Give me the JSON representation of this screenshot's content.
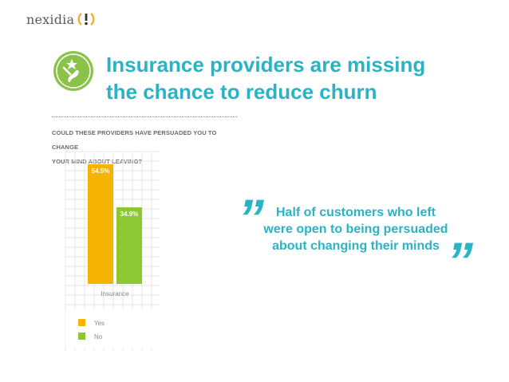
{
  "brand": {
    "name": "nexidia",
    "accent": "#2ab3c4",
    "mark_color": "#f5a623"
  },
  "badge": {
    "icon": "running-figure-icon",
    "color": "#8bc34a"
  },
  "headline": {
    "line1": "Insurance providers are missing",
    "line2": "the chance to reduce churn"
  },
  "question": {
    "line1": "COULD THESE PROVIDERS HAVE PERSUADED YOU TO CHANGE",
    "line2": "YOUR MIND ABOUT LEAVING?"
  },
  "quote": {
    "line1": "Half of customers who left",
    "line2": "were open to being persuaded",
    "line3": "about changing their minds",
    "open_mark": "”",
    "close_mark": "”"
  },
  "chart_data": {
    "type": "bar",
    "categories": [
      "Insurance"
    ],
    "series": [
      {
        "name": "Yes",
        "values": [
          54.5
        ],
        "label": "54.5%",
        "color": "#f5b400"
      },
      {
        "name": "No",
        "values": [
          34.9
        ],
        "label": "34.9%",
        "color": "#8cc832"
      }
    ],
    "ylim": [
      0,
      60
    ],
    "grid": true,
    "legend": "bottom-left"
  }
}
